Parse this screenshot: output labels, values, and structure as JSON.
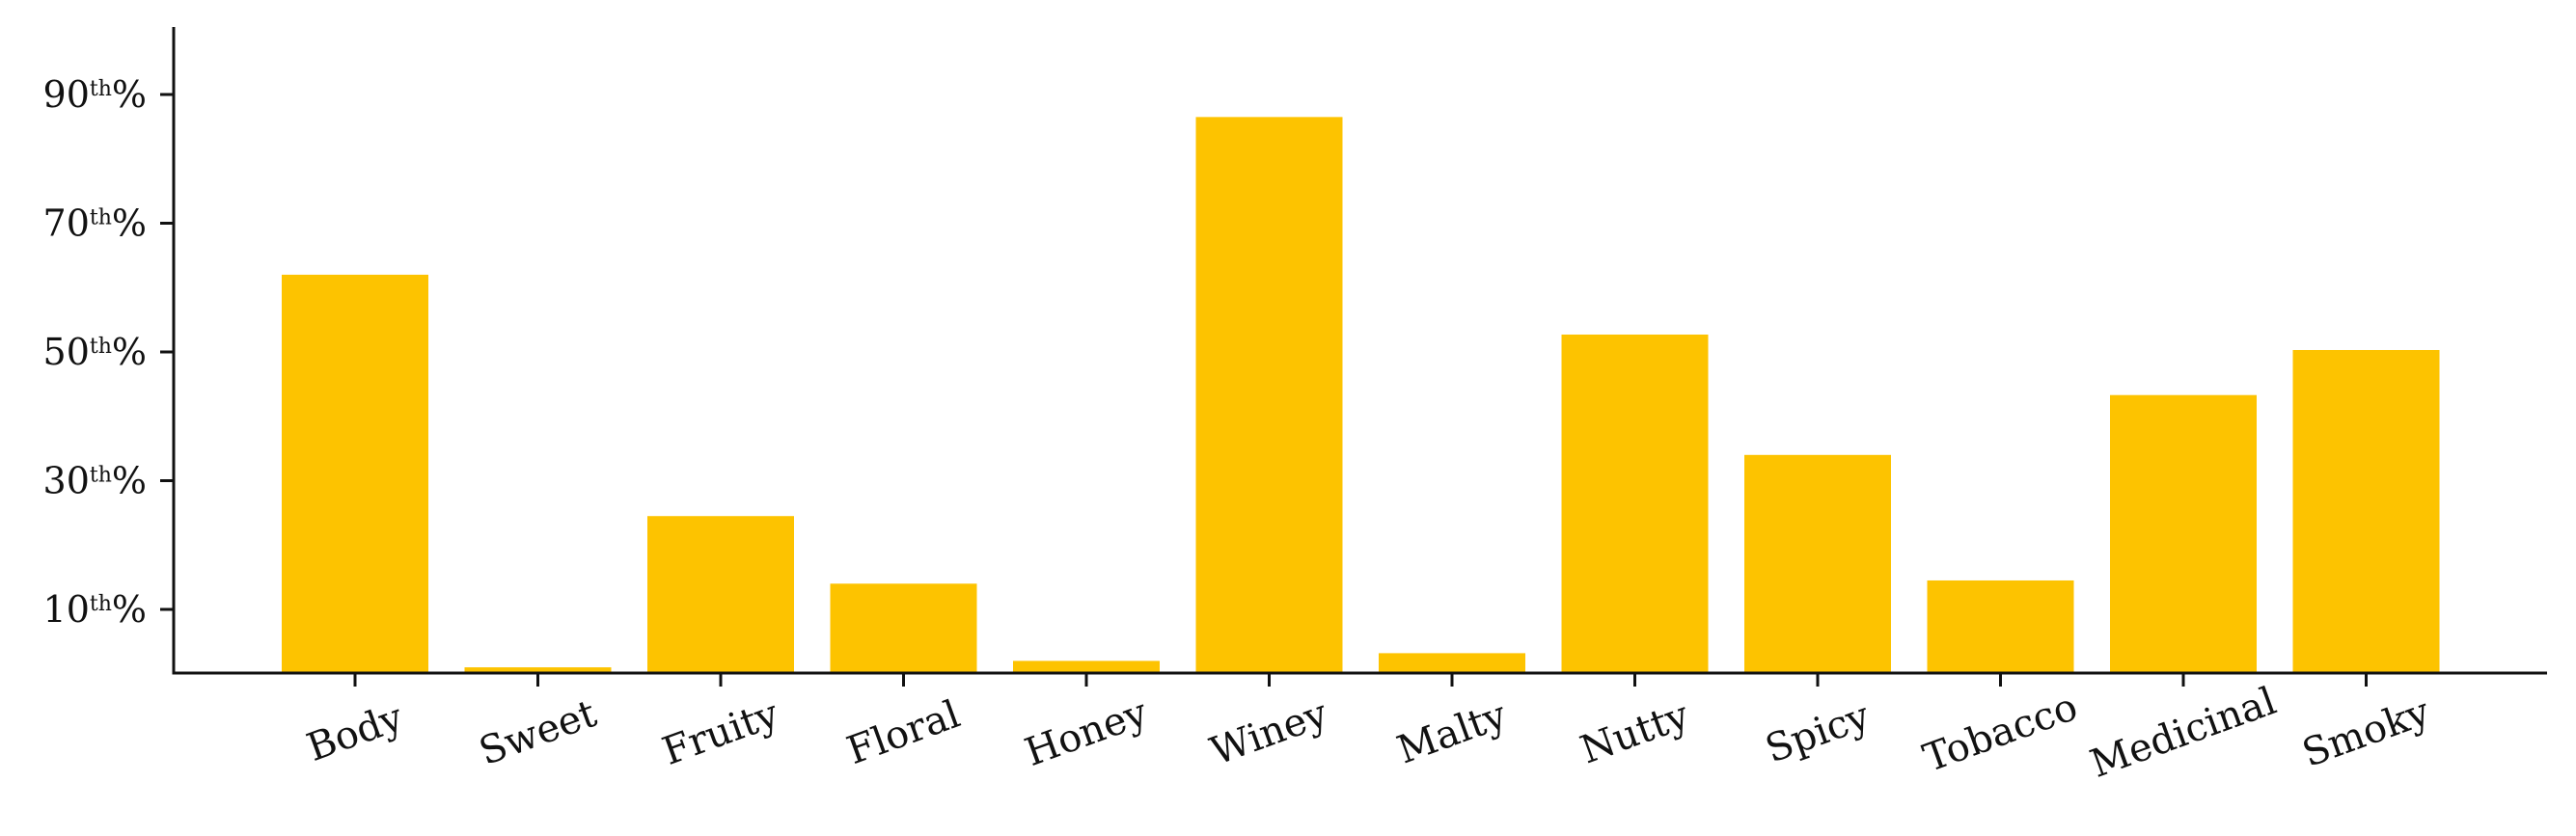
{
  "chart_data": {
    "type": "bar",
    "title": "",
    "xlabel": "",
    "ylabel": "",
    "categories": [
      "Body",
      "Sweet",
      "Fruity",
      "Floral",
      "Honey",
      "Winey",
      "Malty",
      "Nutty",
      "Spicy",
      "Tobacco",
      "Medicinal",
      "Smoky"
    ],
    "values": [
      62,
      1,
      24.5,
      14,
      2,
      86.5,
      3.2,
      52.7,
      34,
      14.5,
      43.3,
      50.3
    ],
    "ylim": [
      0,
      100
    ],
    "yticks": [
      {
        "value": 10,
        "number": "10",
        "suffix": "th",
        "percent": "%"
      },
      {
        "value": 30,
        "number": "30",
        "suffix": "th",
        "percent": "%"
      },
      {
        "value": 50,
        "number": "50",
        "suffix": "th",
        "percent": "%"
      },
      {
        "value": 70,
        "number": "70",
        "suffix": "th",
        "percent": "%"
      },
      {
        "value": 90,
        "number": "90",
        "suffix": "th",
        "percent": "%"
      }
    ],
    "bar_color": "#FDC300",
    "grid": false,
    "legend": "none"
  }
}
